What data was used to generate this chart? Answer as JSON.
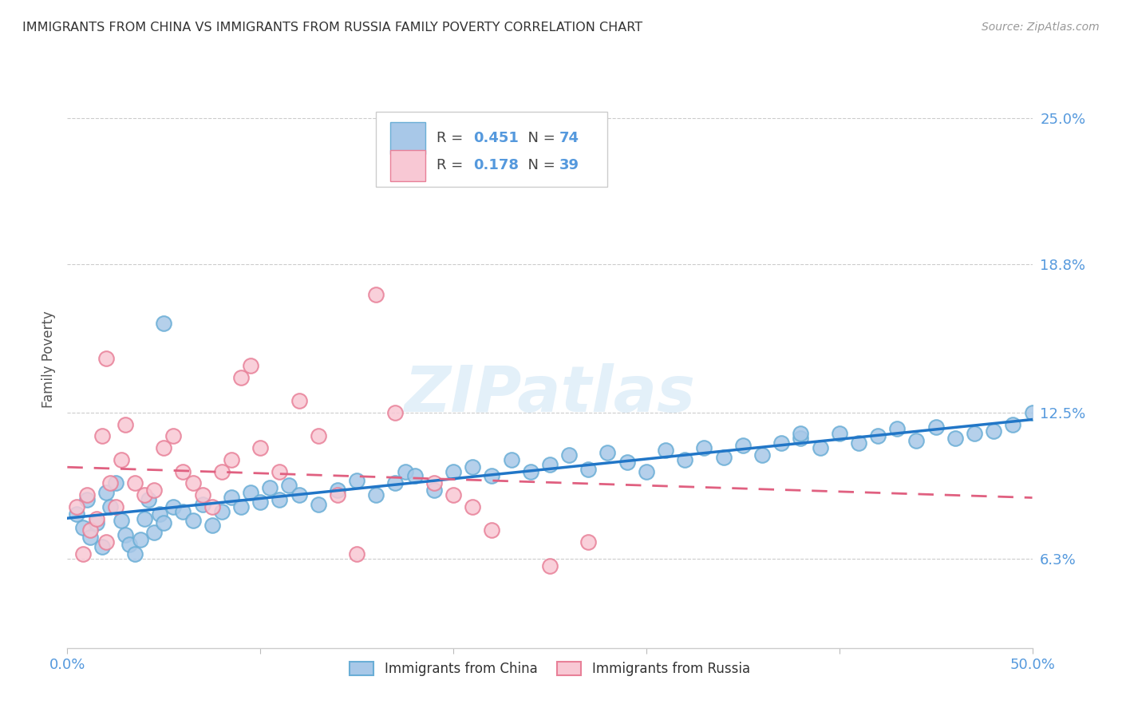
{
  "title": "IMMIGRANTS FROM CHINA VS IMMIGRANTS FROM RUSSIA FAMILY POVERTY CORRELATION CHART",
  "source": "Source: ZipAtlas.com",
  "ylabel": "Family Poverty",
  "xlim": [
    0.0,
    0.5
  ],
  "ylim": [
    0.025,
    0.27
  ],
  "yticks": [
    0.063,
    0.125,
    0.188,
    0.25
  ],
  "ytick_labels": [
    "6.3%",
    "12.5%",
    "18.8%",
    "25.0%"
  ],
  "china_color": "#a8c8e8",
  "china_edge_color": "#6aaed6",
  "russia_color": "#f8c8d4",
  "russia_edge_color": "#e88098",
  "china_line_color": "#2176c7",
  "russia_line_color": "#e06080",
  "tick_label_color": "#5599dd",
  "watermark": "ZIPatlas",
  "legend_r_china": "0.451",
  "legend_n_china": "74",
  "legend_r_russia": "0.178",
  "legend_n_russia": "39",
  "china_x": [
    0.005,
    0.008,
    0.01,
    0.012,
    0.015,
    0.018,
    0.02,
    0.022,
    0.025,
    0.028,
    0.03,
    0.032,
    0.035,
    0.038,
    0.04,
    0.042,
    0.045,
    0.048,
    0.05,
    0.055,
    0.06,
    0.065,
    0.07,
    0.075,
    0.08,
    0.085,
    0.09,
    0.095,
    0.1,
    0.105,
    0.11,
    0.115,
    0.12,
    0.13,
    0.14,
    0.15,
    0.16,
    0.17,
    0.175,
    0.18,
    0.19,
    0.2,
    0.21,
    0.22,
    0.23,
    0.24,
    0.25,
    0.26,
    0.27,
    0.28,
    0.29,
    0.3,
    0.31,
    0.32,
    0.33,
    0.34,
    0.35,
    0.36,
    0.37,
    0.38,
    0.39,
    0.4,
    0.41,
    0.42,
    0.43,
    0.44,
    0.45,
    0.46,
    0.47,
    0.48,
    0.49,
    0.5,
    0.38,
    0.05
  ],
  "china_y": [
    0.082,
    0.076,
    0.088,
    0.072,
    0.078,
    0.068,
    0.091,
    0.085,
    0.095,
    0.079,
    0.073,
    0.069,
    0.065,
    0.071,
    0.08,
    0.088,
    0.074,
    0.082,
    0.078,
    0.085,
    0.083,
    0.079,
    0.086,
    0.077,
    0.083,
    0.089,
    0.085,
    0.091,
    0.087,
    0.093,
    0.088,
    0.094,
    0.09,
    0.086,
    0.092,
    0.096,
    0.09,
    0.095,
    0.1,
    0.098,
    0.092,
    0.1,
    0.102,
    0.098,
    0.105,
    0.1,
    0.103,
    0.107,
    0.101,
    0.108,
    0.104,
    0.1,
    0.109,
    0.105,
    0.11,
    0.106,
    0.111,
    0.107,
    0.112,
    0.114,
    0.11,
    0.116,
    0.112,
    0.115,
    0.118,
    0.113,
    0.119,
    0.114,
    0.116,
    0.117,
    0.12,
    0.125,
    0.116,
    0.163
  ],
  "russia_x": [
    0.005,
    0.008,
    0.01,
    0.012,
    0.015,
    0.018,
    0.02,
    0.022,
    0.025,
    0.028,
    0.03,
    0.035,
    0.04,
    0.045,
    0.05,
    0.055,
    0.06,
    0.065,
    0.07,
    0.075,
    0.08,
    0.085,
    0.09,
    0.095,
    0.1,
    0.11,
    0.12,
    0.13,
    0.14,
    0.15,
    0.16,
    0.17,
    0.19,
    0.2,
    0.21,
    0.22,
    0.25,
    0.27,
    0.02
  ],
  "russia_y": [
    0.085,
    0.065,
    0.09,
    0.075,
    0.08,
    0.115,
    0.07,
    0.095,
    0.085,
    0.105,
    0.12,
    0.095,
    0.09,
    0.092,
    0.11,
    0.115,
    0.1,
    0.095,
    0.09,
    0.085,
    0.1,
    0.105,
    0.14,
    0.145,
    0.11,
    0.1,
    0.13,
    0.115,
    0.09,
    0.065,
    0.175,
    0.125,
    0.095,
    0.09,
    0.085,
    0.075,
    0.06,
    0.07,
    0.148
  ]
}
